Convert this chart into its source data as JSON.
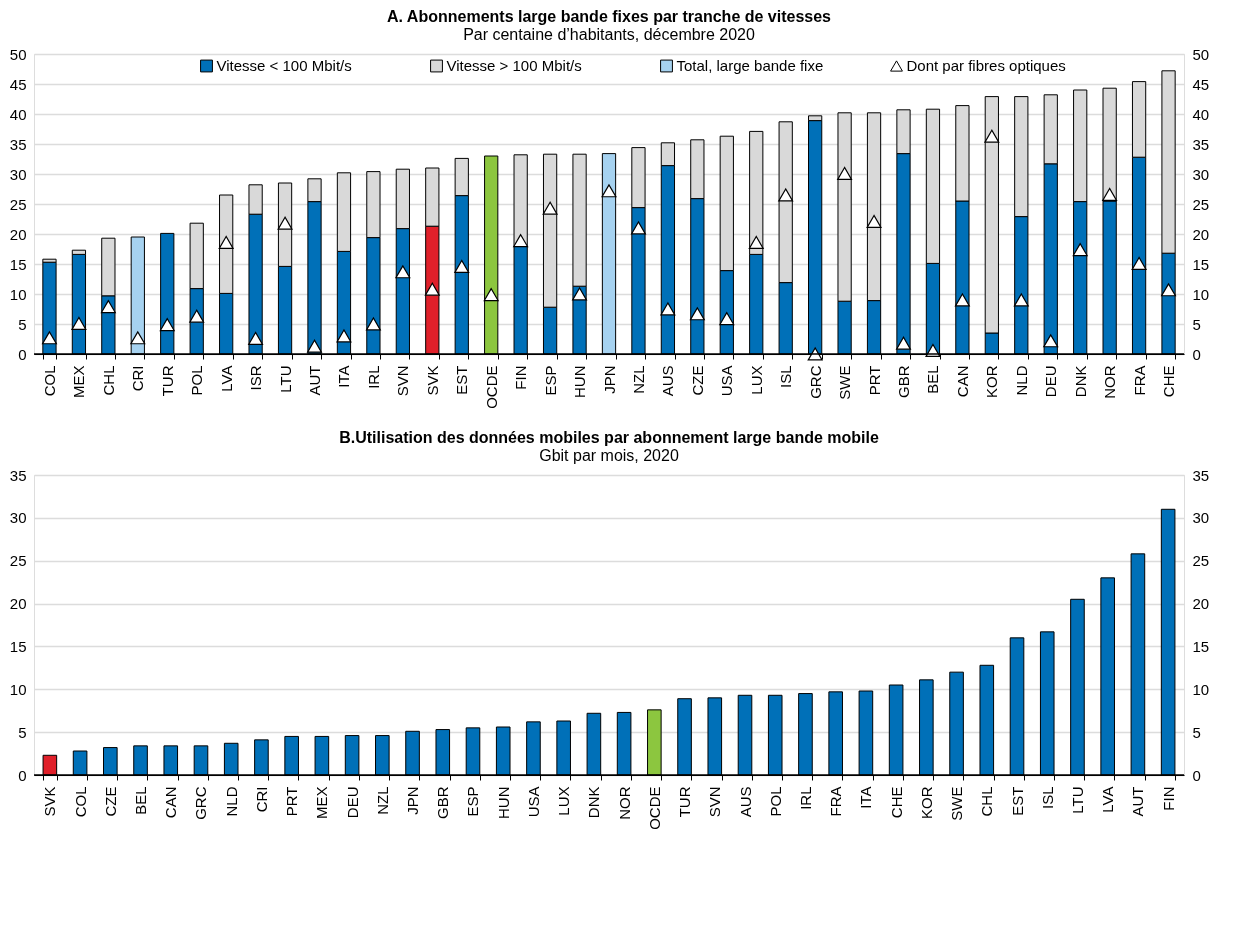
{
  "chart_data": [
    {
      "type": "bar",
      "title": "A. Abonnements large bande fixes par tranche de vitesses",
      "subtitle": "Par centaine d’habitants, décembre 2020",
      "categories": [
        "COL",
        "MEX",
        "CHL",
        "CRI",
        "TUR",
        "POL",
        "LVA",
        "ISR",
        "LTU",
        "AUT",
        "ITA",
        "IRL",
        "SVN",
        "SVK",
        "EST",
        "OCDE",
        "FIN",
        "ESP",
        "HUN",
        "JPN",
        "NZL",
        "AUS",
        "CZE",
        "USA",
        "LUX",
        "ISL",
        "GRC",
        "SWE",
        "PRT",
        "GBR",
        "BEL",
        "CAN",
        "KOR",
        "NLD",
        "DEU",
        "DNK",
        "NOR",
        "FRA",
        "CHE"
      ],
      "stacked": true,
      "series": [
        {
          "name": "Vitesse < 100 Mbit/s",
          "color": "#0070b8",
          "values": [
            15.3,
            16.6,
            9.7,
            null,
            20.1,
            10.9,
            10.1,
            23.3,
            14.6,
            25.4,
            17.1,
            19.4,
            20.9,
            21.3,
            26.4,
            33.0,
            18.1,
            7.8,
            11.3,
            null,
            24.4,
            31.4,
            25.9,
            13.9,
            16.6,
            11.9,
            38.9,
            8.8,
            8.9,
            33.4,
            15.1,
            25.5,
            3.5,
            22.9,
            31.7,
            25.4,
            25.5,
            32.8,
            16.8
          ],
          "colors": [
            "#0070b8",
            "#0070b8",
            "#0070b8",
            "#0070b8",
            "#0070b8",
            "#0070b8",
            "#0070b8",
            "#0070b8",
            "#0070b8",
            "#0070b8",
            "#0070b8",
            "#0070b8",
            "#0070b8",
            "#e0202a",
            "#0070b8",
            "#8cc63f",
            "#0070b8",
            "#0070b8",
            "#0070b8",
            "#0070b8",
            "#0070b8",
            "#0070b8",
            "#0070b8",
            "#0070b8",
            "#0070b8",
            "#0070b8",
            "#0070b8",
            "#0070b8",
            "#0070b8",
            "#0070b8",
            "#0070b8",
            "#0070b8",
            "#0070b8",
            "#0070b8",
            "#0070b8",
            "#0070b8",
            "#0070b8",
            "#0070b8",
            "#0070b8"
          ]
        },
        {
          "name": "Vitesse > 100 Mbit/s",
          "color": "#d9d9d9",
          "values": [
            0.5,
            0.7,
            9.6,
            null,
            null,
            10.9,
            16.4,
            4.9,
            13.9,
            3.8,
            13.1,
            11.0,
            9.9,
            9.7,
            6.2,
            null,
            15.1,
            25.5,
            22.0,
            null,
            10.0,
            3.8,
            9.8,
            22.4,
            20.5,
            26.8,
            0.8,
            31.4,
            31.3,
            7.3,
            25.7,
            15.9,
            39.4,
            20.0,
            11.5,
            18.6,
            18.8,
            12.6,
            30.4
          ]
        },
        {
          "name": "Total, large bande fixe",
          "color": "#a6d2f0",
          "values": [
            null,
            null,
            null,
            19.5,
            null,
            null,
            null,
            null,
            null,
            null,
            null,
            null,
            null,
            null,
            null,
            null,
            null,
            null,
            null,
            33.4,
            null,
            null,
            null,
            null,
            null,
            null,
            null,
            null,
            null,
            null,
            null,
            null,
            null,
            null,
            null,
            null,
            null,
            null,
            null
          ]
        },
        {
          "name": "Dont par fibres optiques",
          "type": "scatter",
          "marker": "triangle",
          "color": "#ffffff",
          "values": [
            2.7,
            5.1,
            7.9,
            2.7,
            4.9,
            6.3,
            18.6,
            2.6,
            21.8,
            1.3,
            3.0,
            5.0,
            13.7,
            10.8,
            14.6,
            9.9,
            18.9,
            24.3,
            10.0,
            27.2,
            21.0,
            7.5,
            6.7,
            5.9,
            18.6,
            26.5,
            0.0,
            30.1,
            22.1,
            1.8,
            0.6,
            9.0,
            36.3,
            9.0,
            2.2,
            17.4,
            26.6,
            15.1,
            10.7
          ]
        }
      ],
      "ylim": [
        0,
        50
      ],
      "yticks": [
        0,
        5,
        10,
        15,
        20,
        25,
        30,
        35,
        40,
        45,
        50
      ],
      "y2lim": [
        0,
        50
      ],
      "y2ticks": [
        0,
        5,
        10,
        15,
        20,
        25,
        30,
        35,
        40,
        45,
        50
      ],
      "grid": "y",
      "legend": "top"
    },
    {
      "type": "bar",
      "title": "B.Utilisation des données mobiles par abonnement large bande mobile",
      "subtitle": "Gbit par mois, 2020",
      "categories": [
        "SVK",
        "COL",
        "CZE",
        "BEL",
        "CAN",
        "GRC",
        "NLD",
        "CRI",
        "PRT",
        "MEX",
        "DEU",
        "NZL",
        "JPN",
        "GBR",
        "ESP",
        "HUN",
        "USA",
        "LUX",
        "DNK",
        "NOR",
        "OCDE",
        "TUR",
        "SVN",
        "AUS",
        "POL",
        "IRL",
        "FRA",
        "ITA",
        "CHE",
        "KOR",
        "SWE",
        "CHL",
        "EST",
        "ISL",
        "LTU",
        "LVA",
        "AUT",
        "FIN"
      ],
      "values": [
        2.3,
        2.8,
        3.2,
        3.4,
        3.4,
        3.4,
        3.7,
        4.1,
        4.5,
        4.5,
        4.6,
        4.6,
        5.1,
        5.3,
        5.5,
        5.6,
        6.2,
        6.3,
        7.2,
        7.3,
        7.6,
        8.9,
        9.0,
        9.3,
        9.3,
        9.5,
        9.7,
        9.8,
        10.5,
        11.1,
        12.0,
        12.8,
        16.0,
        16.7,
        20.5,
        23.0,
        25.8,
        31.0
      ],
      "colors": [
        "#e0202a",
        "#0070b8",
        "#0070b8",
        "#0070b8",
        "#0070b8",
        "#0070b8",
        "#0070b8",
        "#0070b8",
        "#0070b8",
        "#0070b8",
        "#0070b8",
        "#0070b8",
        "#0070b8",
        "#0070b8",
        "#0070b8",
        "#0070b8",
        "#0070b8",
        "#0070b8",
        "#0070b8",
        "#0070b8",
        "#8cc63f",
        "#0070b8",
        "#0070b8",
        "#0070b8",
        "#0070b8",
        "#0070b8",
        "#0070b8",
        "#0070b8",
        "#0070b8",
        "#0070b8",
        "#0070b8",
        "#0070b8",
        "#0070b8",
        "#0070b8",
        "#0070b8",
        "#0070b8",
        "#0070b8",
        "#0070b8"
      ],
      "ylim": [
        0,
        35
      ],
      "yticks": [
        0,
        5,
        10,
        15,
        20,
        25,
        30,
        35
      ],
      "y2lim": [
        0,
        35
      ],
      "y2ticks": [
        0,
        5,
        10,
        15,
        20,
        25,
        30,
        35
      ],
      "grid": "y"
    }
  ]
}
